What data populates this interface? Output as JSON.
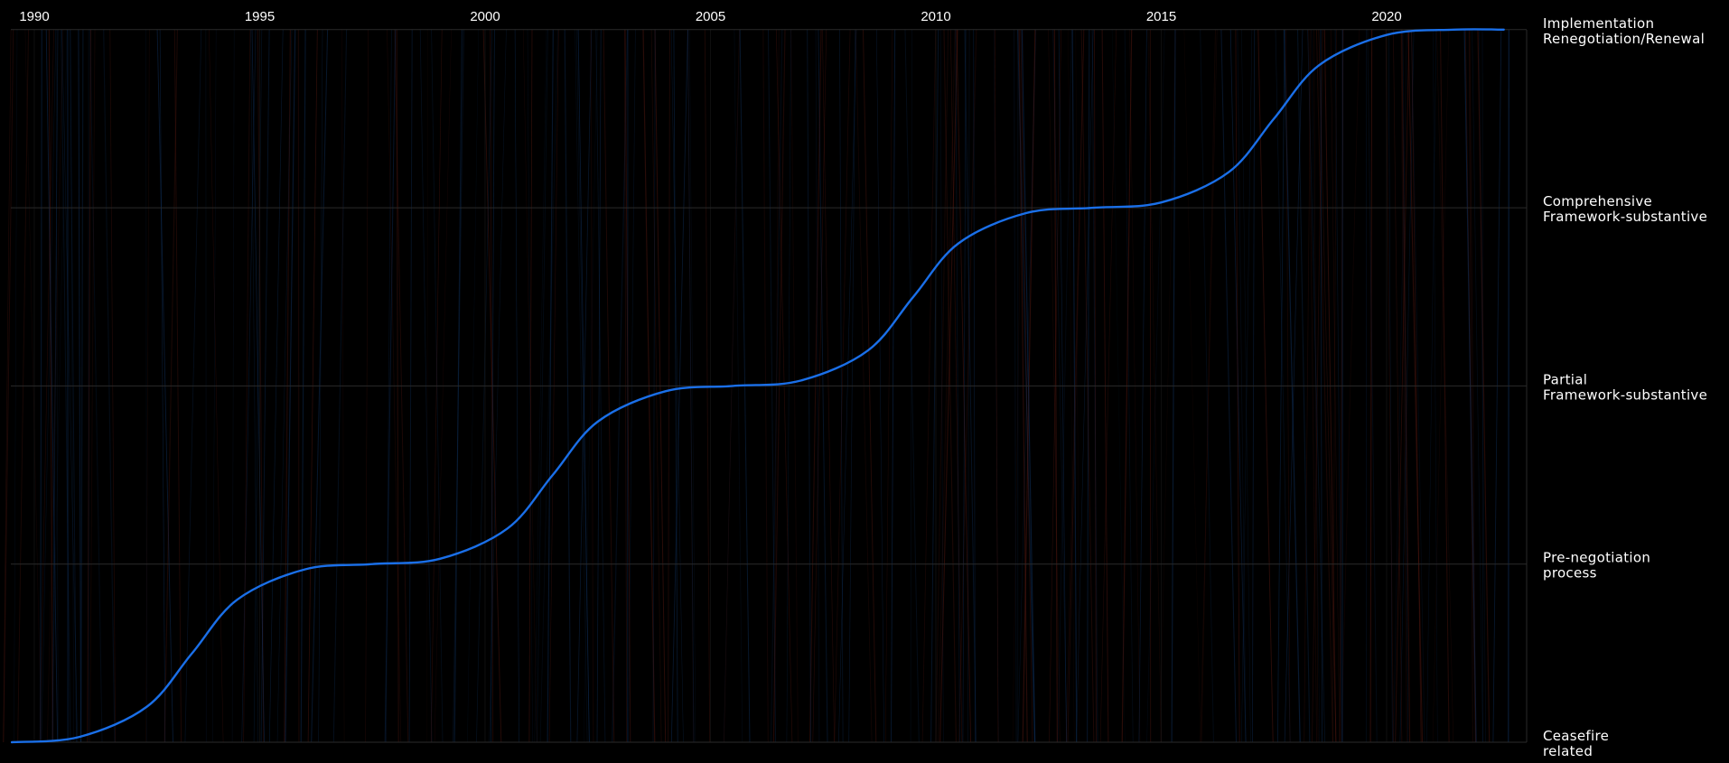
{
  "chart_data": {
    "type": "line",
    "title": "",
    "xlabel": "",
    "ylabel": "",
    "x_axis": {
      "position": "top",
      "ticks": [
        1990,
        1995,
        2000,
        2005,
        2010,
        2015,
        2020
      ],
      "range": [
        1990,
        2023
      ]
    },
    "y_axis": {
      "position": "right",
      "type": "categorical",
      "categories": [
        {
          "lines": [
            "Ceasefire",
            "related"
          ]
        },
        {
          "lines": [
            "Pre-negotiation",
            "process"
          ]
        },
        {
          "lines": [
            "Partial",
            "Framework-substantive"
          ]
        },
        {
          "lines": [
            "Comprehensive",
            "Framework-substantive"
          ]
        },
        {
          "lines": [
            "Implementation",
            "Renegotiation/Renewal"
          ]
        }
      ]
    },
    "series": [
      {
        "color": "#1a6fe8",
        "x": [
          1989.5,
          1991,
          1992.5,
          1993.5,
          1994.5,
          1996,
          1997.5,
          1999,
          2000.5,
          2001.5,
          2002.5,
          2004,
          2005.5,
          2007,
          2008.5,
          2009.5,
          2010.5,
          2012,
          2013.5,
          2015,
          2016.5,
          2017.5,
          2018.5,
          2020,
          2021.5,
          2022.6
        ],
        "y": [
          0,
          0.03,
          0.2,
          0.5,
          0.8,
          0.97,
          1.0,
          1.03,
          1.2,
          1.5,
          1.8,
          1.97,
          2.0,
          2.03,
          2.2,
          2.5,
          2.8,
          2.97,
          3.0,
          3.03,
          3.2,
          3.5,
          3.8,
          3.97,
          4.0,
          4.0
        ]
      }
    ],
    "grid": true,
    "background_traces": true,
    "colors": {
      "background": "#000000",
      "text": "#ffffff",
      "gridline": "#2a2a2a",
      "trace_blue": "#123a6e",
      "trace_red": "#5a1a12"
    }
  }
}
